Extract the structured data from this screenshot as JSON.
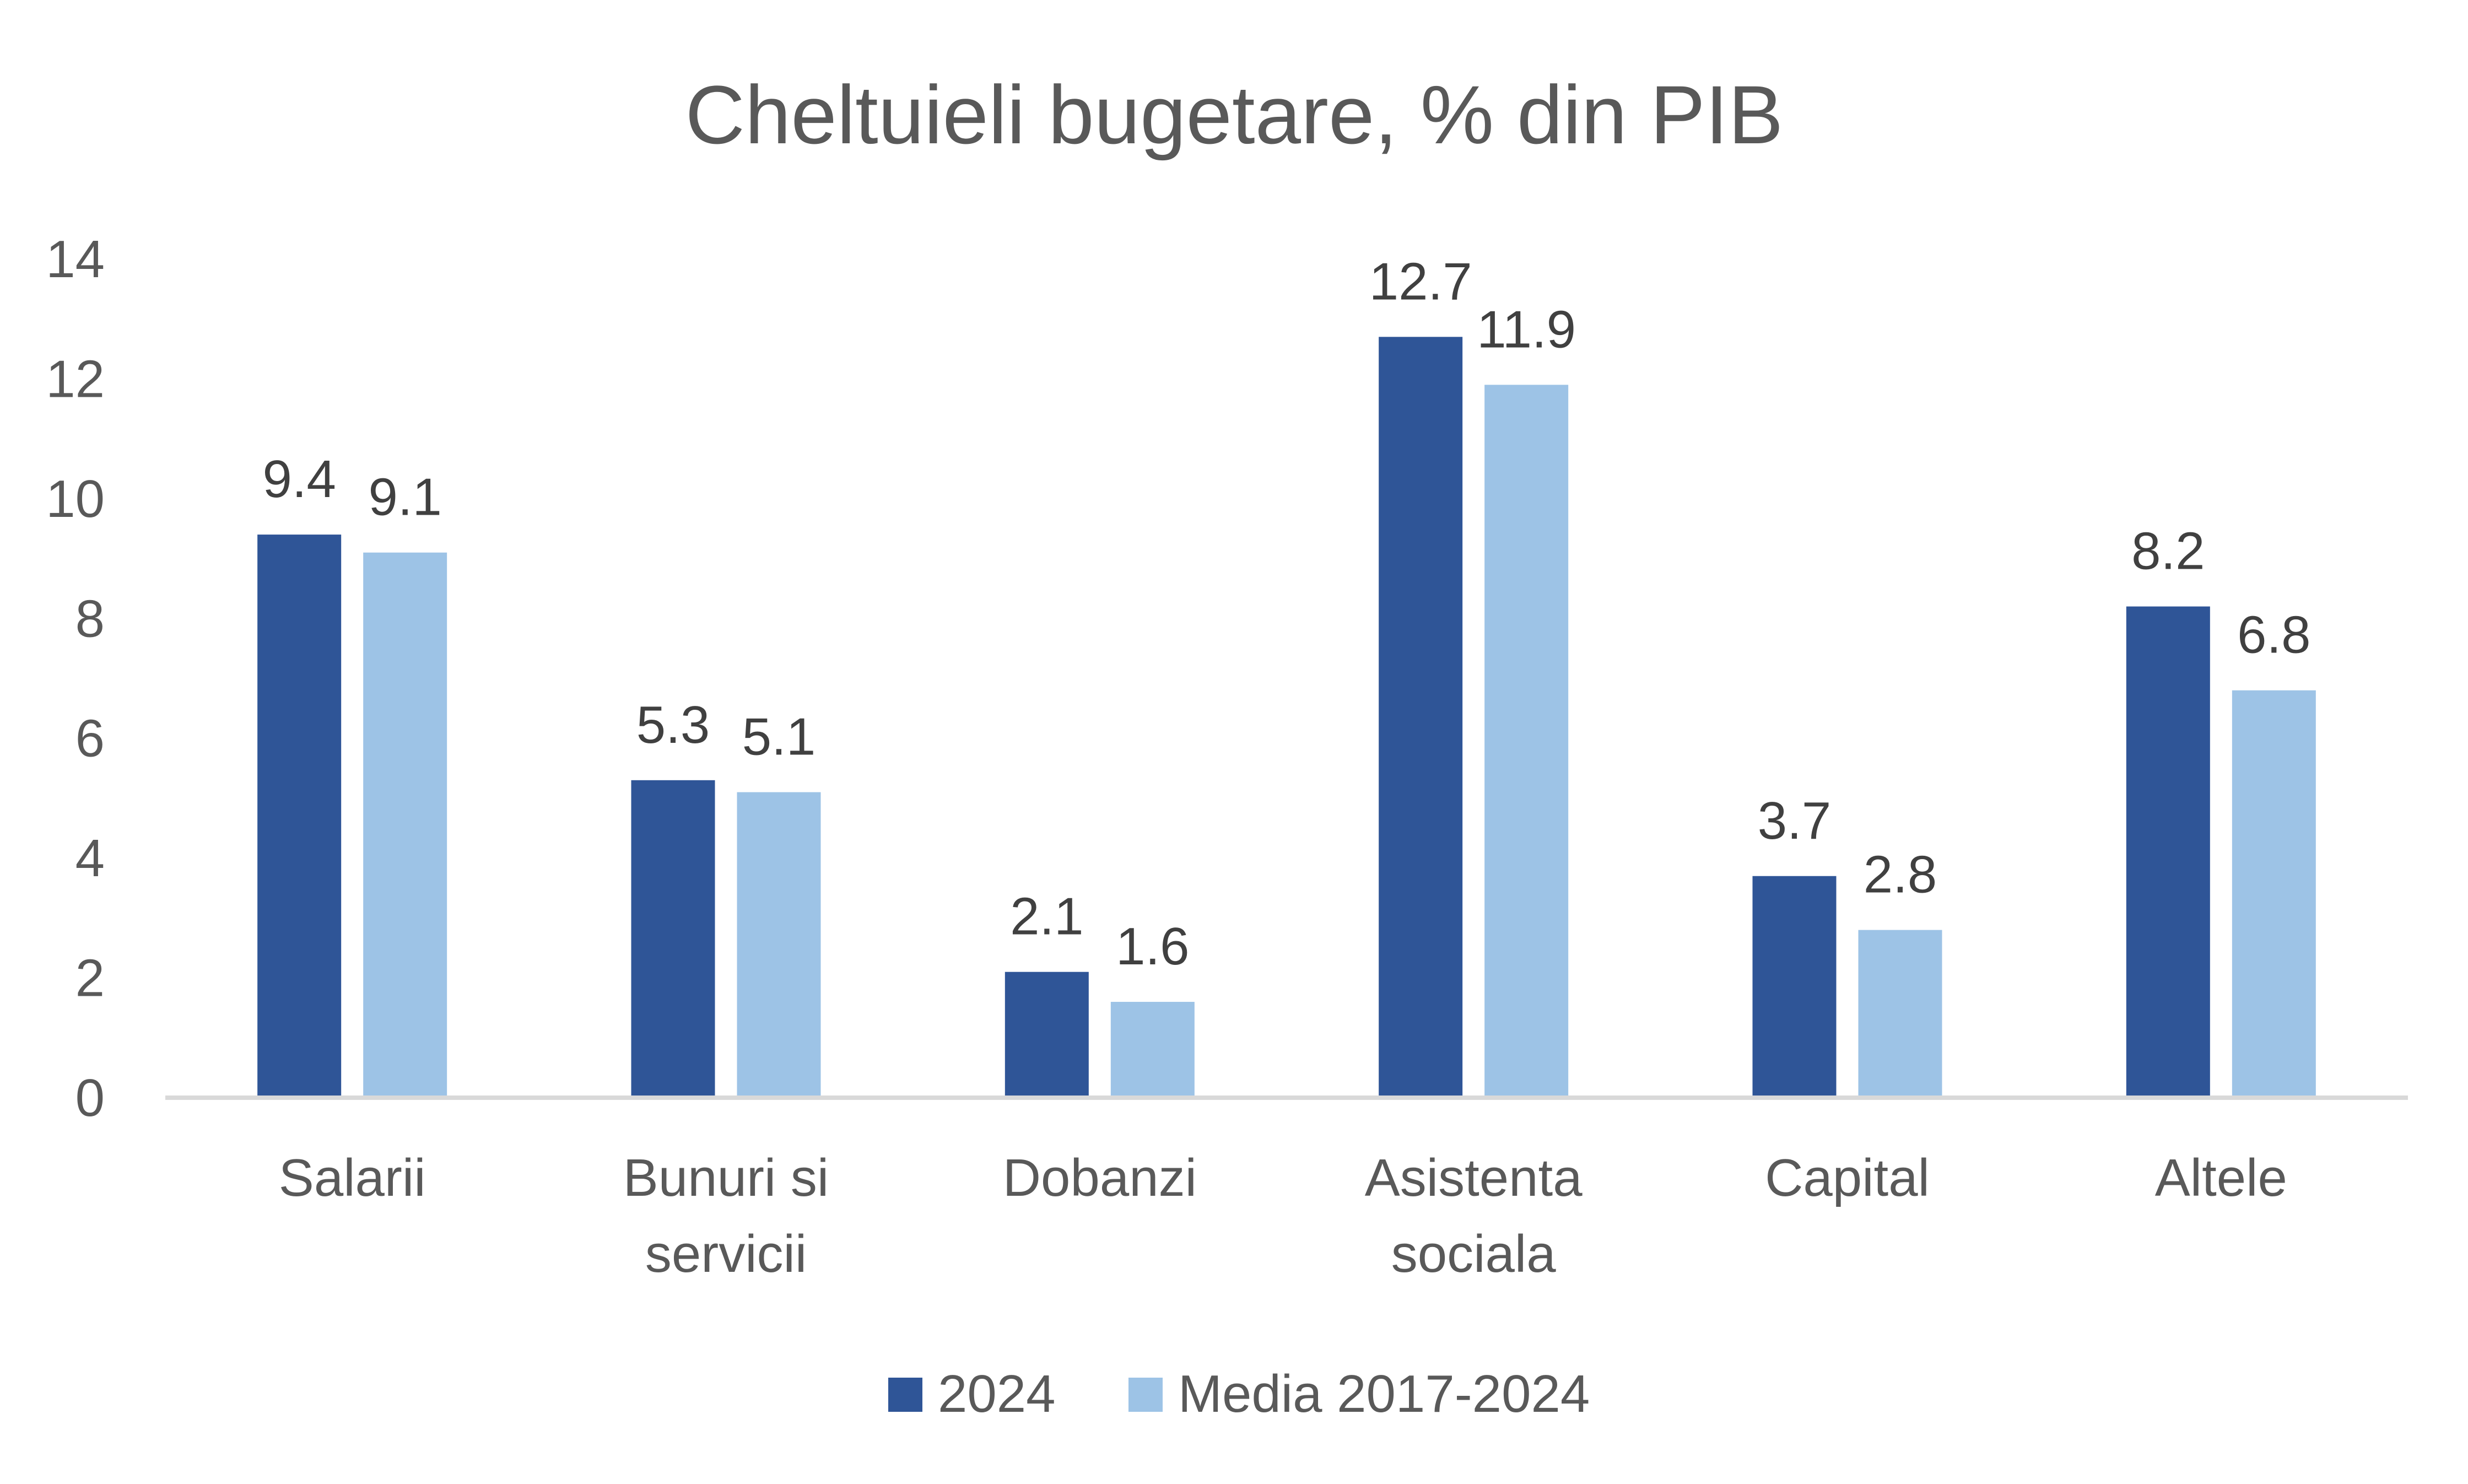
{
  "chart_data": {
    "type": "bar",
    "title": "Cheltuieli bugetare, % din PIB",
    "categories": [
      [
        "Salarii"
      ],
      [
        "Bunuri si",
        "servicii"
      ],
      [
        "Dobanzi"
      ],
      [
        "Asistenta",
        "sociala"
      ],
      [
        "Capital"
      ],
      [
        "Altele"
      ]
    ],
    "series": [
      {
        "name": "2024",
        "color": "#2F5597",
        "values": [
          9.4,
          5.3,
          2.1,
          12.7,
          3.7,
          8.2
        ],
        "labels": [
          "9.4",
          "5.3",
          "2.1",
          "12.7",
          "3.7",
          "8.2"
        ]
      },
      {
        "name": "Media 2017-2024",
        "color": "#9DC3E6",
        "values": [
          9.1,
          5.1,
          1.6,
          11.9,
          2.8,
          6.8
        ],
        "labels": [
          "9.1",
          "5.1",
          "1.6",
          "11.9",
          "2.8",
          "6.8"
        ]
      }
    ],
    "ylim": [
      0,
      14
    ],
    "yticks": [
      "0",
      "2",
      "4",
      "6",
      "8",
      "10",
      "12",
      "14"
    ],
    "grid": false,
    "legend": "bottom",
    "axis_color": "#D9D9D9"
  }
}
